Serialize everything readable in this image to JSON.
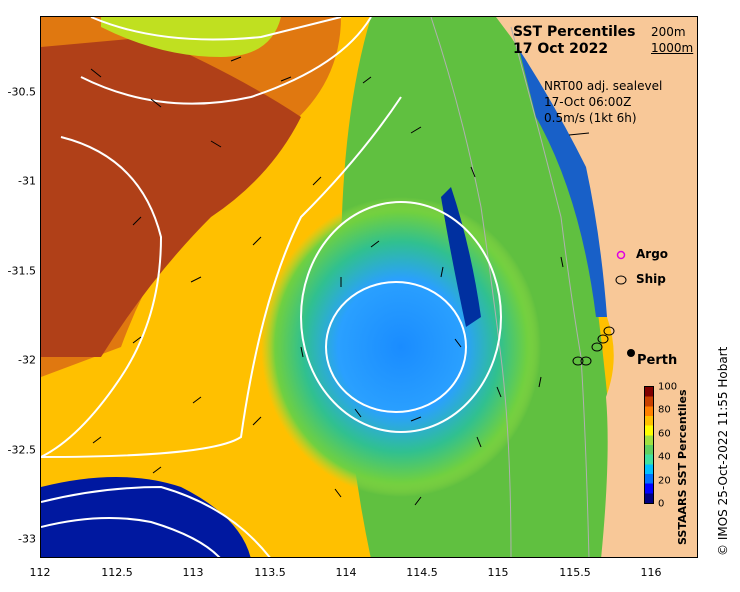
{
  "title": "SST Percentiles",
  "date": "17 Oct 2022",
  "bathymetry": [
    "200m",
    "1000m"
  ],
  "current_info": [
    "NRT00 adj. sealevel",
    "17-Oct 06:00Z",
    "0.5m/s (1kt 6h)"
  ],
  "legend": {
    "argo": "Argo",
    "ship": "Ship"
  },
  "city": "Perth",
  "colorbar": {
    "label": "SSTAARS SST Percentiles",
    "ticks": [
      "100",
      "80",
      "60",
      "40",
      "20",
      "0"
    ],
    "colors": [
      "#000080",
      "#0000ff",
      "#0070ff",
      "#00c0ff",
      "#40e0a0",
      "#60d060",
      "#a0e040",
      "#ffff00",
      "#ffc000",
      "#ff8000",
      "#c84000",
      "#800000"
    ]
  },
  "credit": "© IMOS 25-Oct-2022 11:55 Hobart",
  "axes": {
    "x_ticks": [
      "112",
      "112.5",
      "113",
      "113.5",
      "114",
      "114.5",
      "115",
      "115.5",
      "116"
    ],
    "y_ticks": [
      "-30.5",
      "-31",
      "-31.5",
      "-32",
      "-32.5",
      "-33"
    ]
  },
  "colors": {
    "land": "#f8c898",
    "contour": "#ffffff",
    "argo": "#e000e0",
    "vector": "#000000"
  }
}
